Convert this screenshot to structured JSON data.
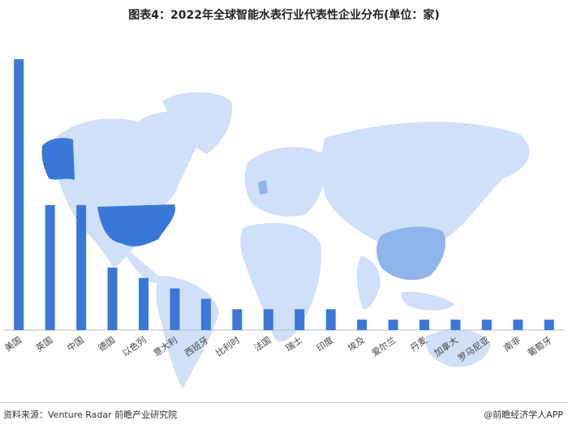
{
  "title": "图表4：2022年全球智能水表行业代表性企业分布(单位：家)",
  "source": "资料来源：Venture Radar 前瞻产业研究院",
  "brand": "@前瞻经济学人APP",
  "colors": {
    "bar": "#3a78d8",
    "map_light": "#cfe0f8",
    "map_mid": "#8fb4ec",
    "map_dark": "#3a78d8",
    "baseline": "#bbbbbb"
  },
  "chart_data": {
    "type": "bar",
    "title": "图表4：2022年全球智能水表行业代表性企业分布(单位：家)",
    "xlabel": "",
    "ylabel": "",
    "grid": false,
    "categories": [
      "美国",
      "英国",
      "中国",
      "德国",
      "以色列",
      "意大利",
      "西班牙",
      "比利时",
      "法国",
      "瑞士",
      "印度",
      "埃及",
      "爱尔兰",
      "丹麦",
      "加拿大",
      "罗马尼亚",
      "南非",
      "葡萄牙"
    ],
    "values": [
      26,
      12,
      12,
      6,
      5,
      4,
      3,
      2,
      2,
      2,
      2,
      1,
      1,
      1,
      1,
      1,
      1,
      1
    ],
    "ylim": [
      0,
      26
    ]
  }
}
